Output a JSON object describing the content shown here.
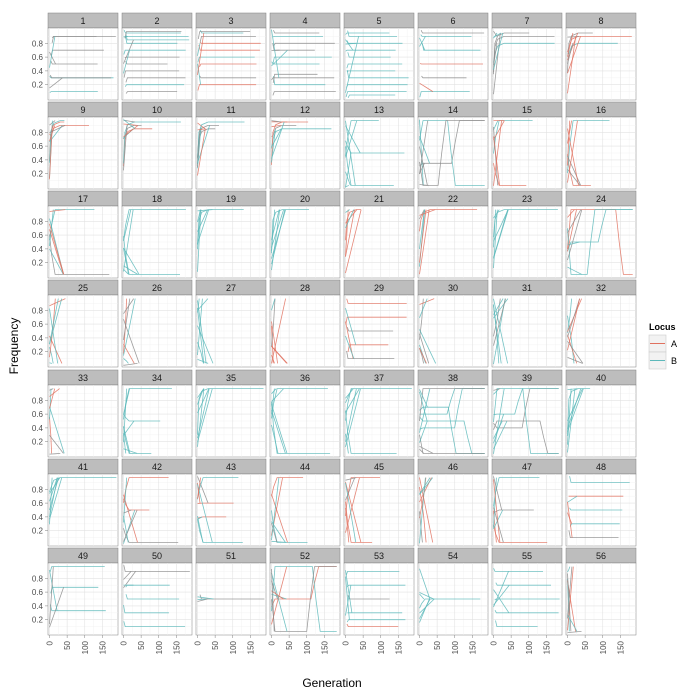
{
  "chart_data": {
    "type": "line",
    "facet_by": "panel",
    "panels": [
      "1",
      "2",
      "3",
      "4",
      "5",
      "6",
      "7",
      "8",
      "9",
      "10",
      "11",
      "12",
      "13",
      "14",
      "15",
      "16",
      "17",
      "18",
      "19",
      "20",
      "21",
      "22",
      "23",
      "24",
      "25",
      "26",
      "27",
      "28",
      "29",
      "30",
      "31",
      "32",
      "33",
      "34",
      "35",
      "36",
      "37",
      "38",
      "39",
      "40",
      "41",
      "42",
      "43",
      "44",
      "45",
      "46",
      "47",
      "48",
      "49",
      "50",
      "51",
      "52",
      "53",
      "54",
      "55",
      "56"
    ],
    "facet_rows": 7,
    "facet_cols": 8,
    "xlabel": "Generation",
    "ylabel": "Frequency",
    "x_ticks": [
      "0",
      "50",
      "100",
      "150"
    ],
    "y_ticks": [
      "0.2",
      "0.4",
      "0.6",
      "0.8"
    ],
    "xlim": [
      0,
      190
    ],
    "ylim": [
      0,
      1
    ],
    "grid": true,
    "legend": {
      "title": "Locus",
      "position": "right",
      "entries": [
        {
          "label": "A",
          "color": "#E0715F"
        },
        {
          "label": "B",
          "color": "#5CB8BA"
        }
      ]
    },
    "series_colors": {
      "A": "#E0715F",
      "B": "#5CB8BA",
      "mixed": "#8C8C8C"
    },
    "panel_patterns": {
      "1": {
        "style": "flat",
        "levels": [
          0.1,
          0.3,
          0.3,
          0.5,
          0.7,
          0.9,
          0.9
        ],
        "mix": "gray"
      },
      "2": {
        "style": "flat",
        "levels": [
          0.1,
          0.2,
          0.3,
          0.4,
          0.5,
          0.6,
          0.7,
          0.8,
          0.85,
          0.9,
          0.95,
          0.97
        ],
        "mix": "gray"
      },
      "3": {
        "style": "flat",
        "levels": [
          0.5,
          0.6,
          0.7,
          0.8,
          0.9,
          0.95,
          0.97,
          0.3,
          0.2
        ],
        "mix": "mixed"
      },
      "4": {
        "style": "flat",
        "levels": [
          0.1,
          0.2,
          0.3,
          0.35,
          0.5,
          0.6,
          0.7,
          0.8,
          0.9,
          0.95
        ],
        "mix": "gray"
      },
      "5": {
        "style": "flat",
        "levels": [
          0.05,
          0.1,
          0.2,
          0.3,
          0.4,
          0.5,
          0.6,
          0.7,
          0.8,
          0.9,
          0.95
        ],
        "mix": "B"
      },
      "6": {
        "style": "flat",
        "levels": [
          0.1,
          0.3,
          0.5,
          0.7,
          0.9,
          0.95
        ],
        "mix": "mixed"
      },
      "7": {
        "style": "rise",
        "levels": [
          0.8,
          0.9,
          0.95
        ],
        "mix": "gray"
      },
      "8": {
        "style": "rise",
        "levels": [
          0.8,
          0.9,
          0.95
        ],
        "mix": "mixed"
      },
      "9": {
        "style": "rise",
        "levels": [
          0.9,
          0.95,
          0.97
        ],
        "mix": "mixed"
      },
      "10": {
        "style": "rise",
        "levels": [
          0.85,
          0.9,
          0.95
        ],
        "mix": "mixed"
      },
      "11": {
        "style": "rise",
        "levels": [
          0.85,
          0.9,
          0.95
        ],
        "mix": "mixed"
      },
      "12": {
        "style": "rise",
        "levels": [
          0.85,
          0.9,
          0.95
        ],
        "mix": "mixed"
      },
      "13": {
        "style": "split",
        "levels": [
          0.03,
          0.5,
          0.97
        ],
        "mix": "B"
      },
      "14": {
        "style": "sigmoid",
        "levels": [
          0.35,
          0.97,
          0.03
        ],
        "mix": "gray"
      },
      "15": {
        "style": "split",
        "levels": [
          0.03,
          0.97
        ],
        "mix": "mixed"
      },
      "16": {
        "style": "split",
        "levels": [
          0.03,
          0.97
        ],
        "mix": "mixed"
      },
      "17": {
        "style": "split",
        "levels": [
          0.03,
          0.97
        ],
        "mix": "mixed"
      },
      "18": {
        "style": "split",
        "levels": [
          0.03,
          0.97
        ],
        "mix": "B"
      },
      "19": {
        "style": "rise",
        "levels": [
          0.97
        ],
        "mix": "B"
      },
      "20": {
        "style": "rise",
        "levels": [
          0.97
        ],
        "mix": "B"
      },
      "21": {
        "style": "rise",
        "levels": [
          0.97
        ],
        "mix": "mixed"
      },
      "22": {
        "style": "rise",
        "levels": [
          0.97
        ],
        "mix": "mixed"
      },
      "23": {
        "style": "rise",
        "levels": [
          0.97
        ],
        "mix": "B"
      },
      "24": {
        "style": "sigmoid",
        "levels": [
          0.5,
          0.97,
          0.03
        ],
        "mix": "mixed"
      },
      "25": {
        "style": "early",
        "levels": [
          0.03,
          0.97
        ],
        "mix": "mixed"
      },
      "26": {
        "style": "early",
        "levels": [
          0.03,
          0.97
        ],
        "mix": "mixed"
      },
      "27": {
        "style": "early",
        "levels": [
          0.03,
          0.97
        ],
        "mix": "B"
      },
      "28": {
        "style": "early",
        "levels": [
          0.03,
          0.97
        ],
        "mix": "mixed"
      },
      "29": {
        "style": "flat",
        "levels": [
          0.1,
          0.3,
          0.5,
          0.7,
          0.9
        ],
        "mix": "mixed"
      },
      "30": {
        "style": "early",
        "levels": [
          0.03,
          0.97
        ],
        "mix": "mixed"
      },
      "31": {
        "style": "early",
        "levels": [
          0.03,
          0.97
        ],
        "mix": "mixed"
      },
      "32": {
        "style": "early",
        "levels": [
          0.03,
          0.97
        ],
        "mix": "mixed"
      },
      "33": {
        "style": "early",
        "levels": [
          0.03,
          0.97
        ],
        "mix": "mixed"
      },
      "34": {
        "style": "split",
        "levels": [
          0.03,
          0.5,
          0.97
        ],
        "mix": "B"
      },
      "35": {
        "style": "rise",
        "levels": [
          0.97
        ],
        "mix": "B"
      },
      "36": {
        "style": "split",
        "levels": [
          0.03,
          0.97
        ],
        "mix": "B"
      },
      "37": {
        "style": "split",
        "levels": [
          0.03,
          0.97
        ],
        "mix": "B"
      },
      "38": {
        "style": "sigmoid",
        "levels": [
          0.4,
          0.5,
          0.6,
          0.7,
          0.97,
          0.03
        ],
        "mix": "gray"
      },
      "39": {
        "style": "sigmoid",
        "levels": [
          0.4,
          0.5,
          0.6,
          0.97
        ],
        "mix": "gray"
      },
      "40": {
        "style": "rise",
        "levels": [
          0.97
        ],
        "mix": "B"
      },
      "41": {
        "style": "rise",
        "levels": [
          0.97
        ],
        "mix": "B"
      },
      "42": {
        "style": "split",
        "levels": [
          0.03,
          0.5,
          0.97
        ],
        "mix": "mixed"
      },
      "43": {
        "style": "split",
        "levels": [
          0.03,
          0.4,
          0.6,
          0.97
        ],
        "mix": "mixed"
      },
      "44": {
        "style": "split",
        "levels": [
          0.03,
          0.97
        ],
        "mix": "mixed"
      },
      "45": {
        "style": "split",
        "levels": [
          0.03,
          0.97
        ],
        "mix": "mixed"
      },
      "46": {
        "style": "early",
        "levels": [
          0.03,
          0.97
        ],
        "mix": "mixed"
      },
      "47": {
        "style": "split",
        "levels": [
          0.03,
          0.5,
          0.97
        ],
        "mix": "mixed"
      },
      "48": {
        "style": "flat",
        "levels": [
          0.1,
          0.3,
          0.5,
          0.7,
          0.9
        ],
        "mix": "mixed"
      },
      "49": {
        "style": "flat",
        "levels": [
          0.33,
          0.67,
          0.97
        ],
        "mix": "mixed"
      },
      "50": {
        "style": "flat",
        "levels": [
          0.1,
          0.3,
          0.5,
          0.7,
          0.9
        ],
        "mix": "gray"
      },
      "51": {
        "style": "flat",
        "levels": [
          0.5
        ],
        "mix": "gray"
      },
      "52": {
        "style": "sigmoid",
        "levels": [
          0.5,
          0.97,
          0.03
        ],
        "mix": "mixed"
      },
      "53": {
        "style": "flat",
        "levels": [
          0.1,
          0.2,
          0.3,
          0.5,
          0.7,
          0.9
        ],
        "mix": "mixed"
      },
      "54": {
        "style": "split",
        "levels": [
          0.5
        ],
        "mix": "B"
      },
      "55": {
        "style": "flat",
        "levels": [
          0.1,
          0.3,
          0.5,
          0.7,
          0.9
        ],
        "mix": "B"
      },
      "56": {
        "style": "early",
        "levels": [
          0.03,
          0.97
        ],
        "mix": "mixed"
      }
    }
  }
}
